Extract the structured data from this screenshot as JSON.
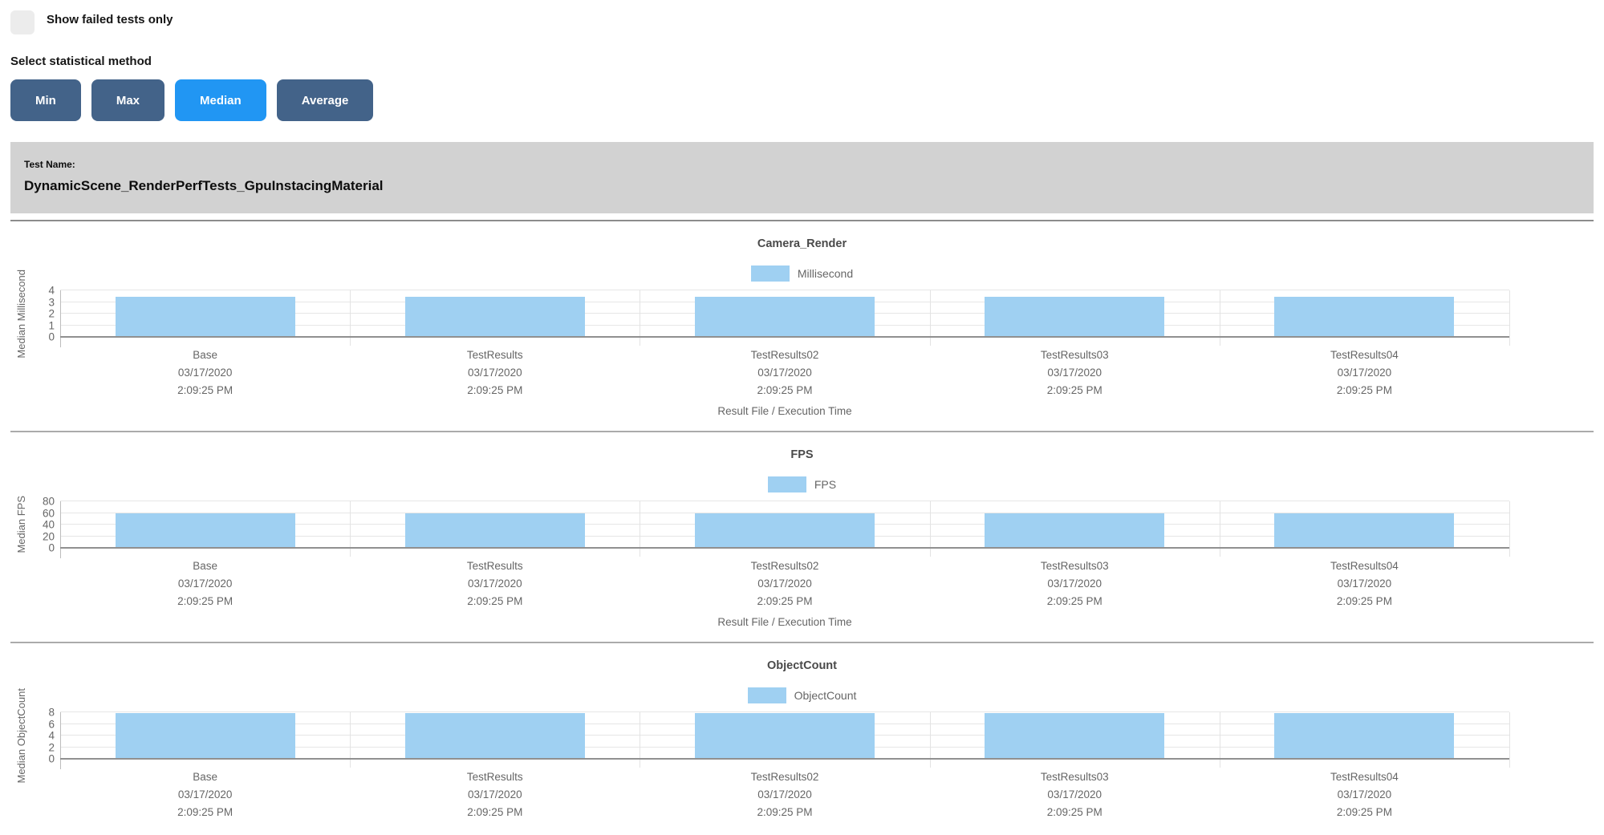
{
  "controls": {
    "show_failed_label": "Show failed tests only",
    "show_failed_checked": false,
    "stat_method_label": "Select statistical method",
    "buttons": [
      {
        "label": "Min",
        "active": false
      },
      {
        "label": "Max",
        "active": false
      },
      {
        "label": "Median",
        "active": true
      },
      {
        "label": "Average",
        "active": false
      }
    ]
  },
  "banner": {
    "label": "Test Name:",
    "test_name": "DynamicScene_RenderPerfTests_GpuInstacingMaterial"
  },
  "colors": {
    "accent_blue": "#2196f3",
    "button_dark": "#436389",
    "bar_fill": "#9fd0f2",
    "banner_bg": "#d2d2d2"
  },
  "chart_data": [
    {
      "type": "bar",
      "title": "Camera_Render",
      "legend": "Millisecond",
      "legend_position": "top",
      "grid": true,
      "ylabel": "Median Millisecond",
      "xlabel": "Result File / Execution Time",
      "ylim": [
        0,
        4
      ],
      "y_ticks": [
        0,
        1,
        2,
        3,
        4
      ],
      "categories": [
        "Base",
        "TestResults",
        "TestResults02",
        "TestResults03",
        "TestResults04"
      ],
      "category_dates": [
        "03/17/2020",
        "03/17/2020",
        "03/17/2020",
        "03/17/2020",
        "03/17/2020"
      ],
      "category_times": [
        "2:09:25 PM",
        "2:09:25 PM",
        "2:09:25 PM",
        "2:09:25 PM",
        "2:09:25 PM"
      ],
      "values": [
        3.45,
        3.45,
        3.45,
        3.45,
        3.45
      ]
    },
    {
      "type": "bar",
      "title": "FPS",
      "legend": "FPS",
      "legend_position": "top",
      "grid": true,
      "ylabel": "Median FPS",
      "xlabel": "Result File / Execution Time",
      "ylim": [
        0,
        80
      ],
      "y_ticks": [
        0,
        20,
        40,
        60,
        80
      ],
      "categories": [
        "Base",
        "TestResults",
        "TestResults02",
        "TestResults03",
        "TestResults04"
      ],
      "category_dates": [
        "03/17/2020",
        "03/17/2020",
        "03/17/2020",
        "03/17/2020",
        "03/17/2020"
      ],
      "category_times": [
        "2:09:25 PM",
        "2:09:25 PM",
        "2:09:25 PM",
        "2:09:25 PM",
        "2:09:25 PM"
      ],
      "values": [
        59,
        59,
        59,
        59,
        59
      ]
    },
    {
      "type": "bar",
      "title": "ObjectCount",
      "legend": "ObjectCount",
      "legend_position": "top",
      "grid": true,
      "ylabel": "Median ObjectCount",
      "xlabel": "",
      "ylim": [
        0,
        8
      ],
      "y_ticks": [
        0,
        2,
        4,
        6,
        8
      ],
      "categories": [
        "Base",
        "TestResults",
        "TestResults02",
        "TestResults03",
        "TestResults04"
      ],
      "category_dates": [
        "03/17/2020",
        "03/17/2020",
        "03/17/2020",
        "03/17/2020",
        "03/17/2020"
      ],
      "category_times": [
        "2:09:25 PM",
        "2:09:25 PM",
        "2:09:25 PM",
        "2:09:25 PM",
        "2:09:25 PM"
      ],
      "values": [
        7.9,
        7.9,
        7.9,
        7.9,
        7.9
      ]
    }
  ]
}
